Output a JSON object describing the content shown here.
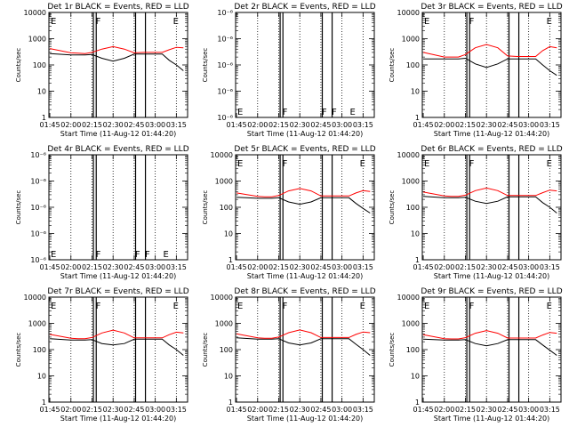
{
  "figure": {
    "xlabel": "Start Time (11-Aug-12 01:44:20)",
    "ylabel": "Counts/sec",
    "x_ticks": [
      "01:45",
      "02:00",
      "02:15",
      "02:30",
      "02:45",
      "03:00",
      "03:15"
    ],
    "colors": {
      "events": "#000000",
      "lld": "#ff0000",
      "background": "#ffffff"
    }
  },
  "chart_data": [
    {
      "type": "line",
      "title": "Det 1r BLACK = Events, RED = LLD",
      "scale": "log",
      "ylim": [
        1,
        10000
      ],
      "y_ticks": [
        "1",
        "10",
        "100",
        "1000",
        "10000"
      ],
      "xlim": [
        "01:44:20",
        "03:23:00"
      ],
      "grid": "vertical-dotted",
      "x": [
        "01:45",
        "02:00",
        "02:05",
        "02:10",
        "02:15",
        "02:22",
        "02:30",
        "02:38",
        "02:45",
        "02:52",
        "03:00",
        "03:05",
        "03:10",
        "03:15",
        "03:20"
      ],
      "series": [
        {
          "name": "Events",
          "color": "#000000",
          "values": [
            270,
            240,
            240,
            240,
            250,
            180,
            140,
            180,
            260,
            260,
            260,
            260,
            150,
            100,
            60
          ]
        },
        {
          "name": "LLD",
          "color": "#ff0000",
          "values": [
            420,
            290,
            280,
            270,
            300,
            400,
            500,
            400,
            290,
            300,
            300,
            300,
            380,
            470,
            450
          ]
        }
      ],
      "vlines": [
        "02:16",
        "02:18",
        "02:46",
        "02:53"
      ],
      "flags": [
        {
          "label": "E",
          "x": "01:45"
        },
        {
          "label": "F",
          "x": "02:17"
        },
        {
          "label": "E",
          "x": "03:12"
        }
      ]
    },
    {
      "type": "line",
      "title": "Det 2r BLACK = Events, RED = LLD",
      "scale": "log",
      "ylim": [
        1e-06,
        1e-05
      ],
      "y_ticks": [
        "10⁻⁶",
        "10⁻⁶",
        "10⁻⁶",
        "10⁻⁶",
        "10⁻⁶"
      ],
      "xlim": [
        "01:44:20",
        "03:23:00"
      ],
      "grid": "vertical-dotted",
      "x": [],
      "series": [],
      "vlines": [
        "02:16",
        "02:18",
        "02:46",
        "02:53"
      ],
      "flags": [
        {
          "label": "E",
          "x": "01:45"
        },
        {
          "label": "F",
          "x": "02:17"
        },
        {
          "label": "F",
          "x": "02:45"
        },
        {
          "label": "F",
          "x": "02:52"
        },
        {
          "label": "E",
          "x": "03:05"
        }
      ]
    },
    {
      "type": "line",
      "title": "Det 3r BLACK = Events, RED = LLD",
      "scale": "log",
      "ylim": [
        1,
        10000
      ],
      "y_ticks": [
        "1",
        "10",
        "100",
        "1000",
        "10000"
      ],
      "xlim": [
        "01:44:20",
        "03:23:00"
      ],
      "grid": "vertical-dotted",
      "x": [
        "01:45",
        "02:00",
        "02:05",
        "02:10",
        "02:15",
        "02:22",
        "02:30",
        "02:38",
        "02:45",
        "02:52",
        "03:00",
        "03:05",
        "03:10",
        "03:15",
        "03:20"
      ],
      "series": [
        {
          "name": "Events",
          "color": "#000000",
          "values": [
            170,
            170,
            170,
            170,
            180,
            110,
            80,
            110,
            170,
            170,
            170,
            170,
            100,
            60,
            40
          ]
        },
        {
          "name": "LLD",
          "color": "#ff0000",
          "values": [
            300,
            200,
            200,
            200,
            250,
            450,
            600,
            450,
            220,
            210,
            210,
            210,
            350,
            500,
            450
          ]
        }
      ],
      "vlines": [
        "02:16",
        "02:18",
        "02:46",
        "02:53"
      ],
      "flags": [
        {
          "label": "E",
          "x": "01:45"
        },
        {
          "label": "F",
          "x": "02:17"
        },
        {
          "label": "E",
          "x": "03:12"
        }
      ]
    },
    {
      "type": "line",
      "title": "Det 4r BLACK = Events, RED = LLD",
      "scale": "log",
      "ylim": [
        1e-06,
        1e-05
      ],
      "y_ticks": [
        "10⁻⁶",
        "10⁻⁶",
        "10⁻⁶",
        "10⁻⁶",
        "10⁻⁶"
      ],
      "xlim": [
        "01:44:20",
        "03:23:00"
      ],
      "grid": "vertical-dotted",
      "x": [],
      "series": [],
      "vlines": [
        "02:16",
        "02:18",
        "02:46",
        "02:53"
      ],
      "flags": [
        {
          "label": "E",
          "x": "01:45"
        },
        {
          "label": "F",
          "x": "02:17"
        },
        {
          "label": "F",
          "x": "02:45"
        },
        {
          "label": "F",
          "x": "02:52"
        },
        {
          "label": "E",
          "x": "03:05"
        }
      ]
    },
    {
      "type": "line",
      "title": "Det 5r BLACK = Events, RED = LLD",
      "scale": "log",
      "ylim": [
        1,
        10000
      ],
      "y_ticks": [
        "1",
        "10",
        "100",
        "1000",
        "10000"
      ],
      "xlim": [
        "01:44:20",
        "03:23:00"
      ],
      "grid": "vertical-dotted",
      "x": [
        "01:45",
        "02:00",
        "02:05",
        "02:10",
        "02:15",
        "02:22",
        "02:30",
        "02:38",
        "02:45",
        "02:52",
        "03:00",
        "03:05",
        "03:10",
        "03:15",
        "03:20"
      ],
      "series": [
        {
          "name": "Events",
          "color": "#000000",
          "values": [
            240,
            220,
            220,
            220,
            230,
            160,
            130,
            160,
            230,
            230,
            230,
            230,
            140,
            90,
            60
          ]
        },
        {
          "name": "LLD",
          "color": "#ff0000",
          "values": [
            350,
            260,
            250,
            250,
            280,
            420,
            520,
            420,
            270,
            270,
            270,
            270,
            350,
            430,
            400
          ]
        }
      ],
      "vlines": [
        "02:16",
        "02:18",
        "02:46",
        "02:53"
      ],
      "flags": [
        {
          "label": "E",
          "x": "01:45"
        },
        {
          "label": "F",
          "x": "02:17"
        },
        {
          "label": "E",
          "x": "03:12"
        }
      ]
    },
    {
      "type": "line",
      "title": "Det 6r BLACK = Events, RED = LLD",
      "scale": "log",
      "ylim": [
        1,
        10000
      ],
      "y_ticks": [
        "1",
        "10",
        "100",
        "1000",
        "10000"
      ],
      "xlim": [
        "01:44:20",
        "03:23:00"
      ],
      "grid": "vertical-dotted",
      "x": [
        "01:45",
        "02:00",
        "02:05",
        "02:10",
        "02:15",
        "02:22",
        "02:30",
        "02:38",
        "02:45",
        "02:52",
        "03:00",
        "03:05",
        "03:10",
        "03:15",
        "03:20"
      ],
      "series": [
        {
          "name": "Events",
          "color": "#000000",
          "values": [
            260,
            230,
            230,
            230,
            240,
            170,
            140,
            170,
            250,
            250,
            250,
            250,
            150,
            100,
            60
          ]
        },
        {
          "name": "LLD",
          "color": "#ff0000",
          "values": [
            380,
            270,
            260,
            260,
            290,
            430,
            540,
            430,
            280,
            280,
            280,
            280,
            360,
            450,
            420
          ]
        }
      ],
      "vlines": [
        "02:16",
        "02:18",
        "02:46",
        "02:53"
      ],
      "flags": [
        {
          "label": "E",
          "x": "01:45"
        },
        {
          "label": "F",
          "x": "02:17"
        },
        {
          "label": "E",
          "x": "03:12"
        }
      ]
    },
    {
      "type": "line",
      "title": "Det 7r BLACK = Events, RED = LLD",
      "scale": "log",
      "ylim": [
        1,
        10000
      ],
      "y_ticks": [
        "1",
        "10",
        "100",
        "1000",
        "10000"
      ],
      "xlim": [
        "01:44:20",
        "03:23:00"
      ],
      "grid": "vertical-dotted",
      "x": [
        "01:45",
        "02:00",
        "02:05",
        "02:10",
        "02:15",
        "02:22",
        "02:30",
        "02:38",
        "02:45",
        "02:52",
        "03:00",
        "03:05",
        "03:10",
        "03:15",
        "03:20"
      ],
      "series": [
        {
          "name": "Events",
          "color": "#000000",
          "values": [
            260,
            230,
            230,
            230,
            240,
            170,
            150,
            170,
            250,
            250,
            250,
            250,
            150,
            100,
            60
          ]
        },
        {
          "name": "LLD",
          "color": "#ff0000",
          "values": [
            380,
            270,
            260,
            260,
            290,
            430,
            550,
            430,
            280,
            280,
            280,
            280,
            370,
            460,
            430
          ]
        }
      ],
      "vlines": [
        "02:16",
        "02:18",
        "02:46",
        "02:53"
      ],
      "flags": [
        {
          "label": "E",
          "x": "01:45"
        },
        {
          "label": "F",
          "x": "02:17"
        },
        {
          "label": "E",
          "x": "03:12"
        }
      ]
    },
    {
      "type": "line",
      "title": "Det 8r BLACK = Events, RED = LLD",
      "scale": "log",
      "ylim": [
        1,
        10000
      ],
      "y_ticks": [
        "1",
        "10",
        "100",
        "1000",
        "10000"
      ],
      "xlim": [
        "01:44:20",
        "03:23:00"
      ],
      "grid": "vertical-dotted",
      "x": [
        "01:45",
        "02:00",
        "02:05",
        "02:10",
        "02:15",
        "02:22",
        "02:30",
        "02:38",
        "02:45",
        "02:52",
        "03:00",
        "03:05",
        "03:10",
        "03:15",
        "03:20"
      ],
      "series": [
        {
          "name": "Events",
          "color": "#000000",
          "values": [
            280,
            250,
            250,
            250,
            260,
            180,
            150,
            180,
            260,
            260,
            260,
            260,
            160,
            100,
            60
          ]
        },
        {
          "name": "LLD",
          "color": "#ff0000",
          "values": [
            400,
            280,
            270,
            270,
            300,
            440,
            560,
            440,
            290,
            290,
            290,
            290,
            380,
            470,
            440
          ]
        }
      ],
      "vlines": [
        "02:16",
        "02:18",
        "02:46",
        "02:53"
      ],
      "flags": [
        {
          "label": "E",
          "x": "01:45"
        },
        {
          "label": "F",
          "x": "02:17"
        },
        {
          "label": "E",
          "x": "03:12"
        }
      ]
    },
    {
      "type": "line",
      "title": "Det 9r BLACK = Events, RED = LLD",
      "scale": "log",
      "ylim": [
        1,
        10000
      ],
      "y_ticks": [
        "1",
        "10",
        "100",
        "1000",
        "10000"
      ],
      "xlim": [
        "01:44:20",
        "03:23:00"
      ],
      "grid": "vertical-dotted",
      "x": [
        "01:45",
        "02:00",
        "02:05",
        "02:10",
        "02:15",
        "02:22",
        "02:30",
        "02:38",
        "02:45",
        "02:52",
        "03:00",
        "03:05",
        "03:10",
        "03:15",
        "03:20"
      ],
      "series": [
        {
          "name": "Events",
          "color": "#000000",
          "values": [
            250,
            230,
            230,
            230,
            240,
            170,
            140,
            170,
            240,
            240,
            240,
            240,
            150,
            95,
            60
          ]
        },
        {
          "name": "LLD",
          "color": "#ff0000",
          "values": [
            370,
            260,
            255,
            255,
            285,
            420,
            530,
            420,
            275,
            275,
            275,
            275,
            360,
            450,
            420
          ]
        }
      ],
      "vlines": [
        "02:16",
        "02:18",
        "02:46",
        "02:53"
      ],
      "flags": [
        {
          "label": "E",
          "x": "01:45"
        },
        {
          "label": "F",
          "x": "02:17"
        },
        {
          "label": "E",
          "x": "03:12"
        }
      ]
    }
  ]
}
